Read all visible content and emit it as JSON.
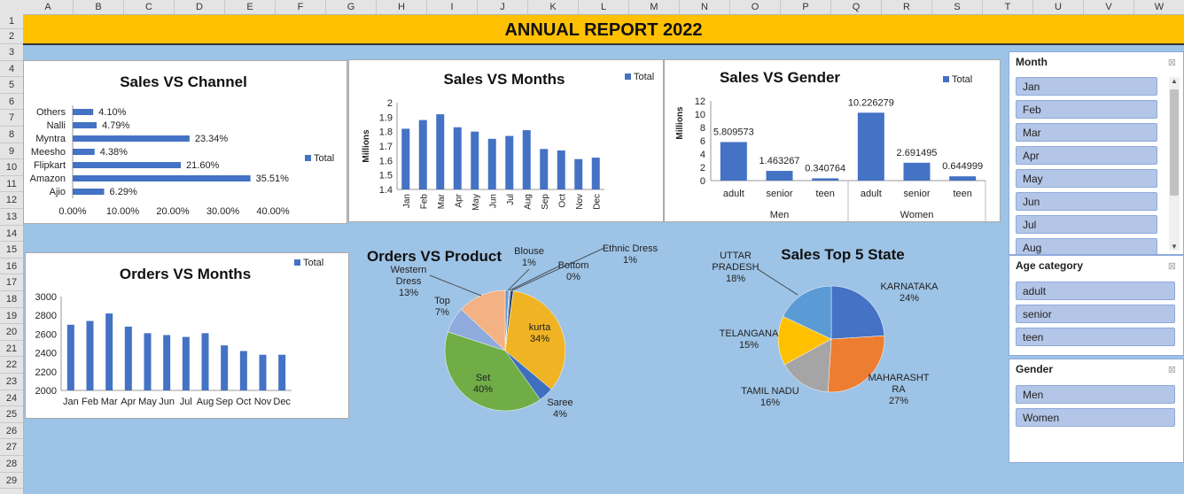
{
  "sheet": {
    "columns": [
      "A",
      "B",
      "C",
      "D",
      "E",
      "F",
      "G",
      "H",
      "I",
      "J",
      "K",
      "L",
      "M",
      "N",
      "O",
      "P",
      "Q",
      "R",
      "S",
      "T",
      "U",
      "V",
      "W"
    ],
    "rows": [
      "1",
      "2",
      "3",
      "4",
      "5",
      "6",
      "7",
      "8",
      "9",
      "10",
      "11",
      "12",
      "13",
      "14",
      "15",
      "16",
      "17",
      "18",
      "19",
      "20",
      "21",
      "22",
      "23",
      "24",
      "25",
      "26",
      "27",
      "28",
      "29"
    ]
  },
  "banner": {
    "title": "ANNUAL REPORT 2022"
  },
  "colors": {
    "bar": "#4472c4",
    "banner": "#ffc000",
    "background": "#9dc3e6",
    "slicer_item": "#b4c6e7"
  },
  "legend": {
    "total": "Total"
  },
  "sales_channel": {
    "chart_data": {
      "type": "bar",
      "orientation": "horizontal",
      "title": "Sales VS Channel",
      "categories": [
        "Others",
        "Nalli",
        "Myntra",
        "Meesho",
        "Flipkart",
        "Amazon",
        "Ajio"
      ],
      "series": [
        {
          "name": "Total",
          "values": [
            4.1,
            4.79,
            23.34,
            4.38,
            21.6,
            35.51,
            6.29
          ]
        }
      ],
      "value_labels": [
        "4.10%",
        "4.79%",
        "23.34%",
        "4.38%",
        "21.60%",
        "35.51%",
        "6.29%"
      ],
      "xlim": [
        0,
        40
      ],
      "ticks": [
        "0.00%",
        "10.00%",
        "20.00%",
        "30.00%",
        "40.00%"
      ],
      "legend": "right"
    }
  },
  "sales_months": {
    "chart_data": {
      "type": "bar",
      "title": "Sales VS Months",
      "ylabel": "Millions",
      "categories": [
        "Jan",
        "Feb",
        "Mar",
        "Apr",
        "May",
        "Jun",
        "Jul",
        "Aug",
        "Sep",
        "Oct",
        "Nov",
        "Dec"
      ],
      "series": [
        {
          "name": "Total",
          "values": [
            1.82,
            1.88,
            1.92,
            1.83,
            1.8,
            1.75,
            1.77,
            1.81,
            1.68,
            1.67,
            1.61,
            1.62
          ]
        }
      ],
      "ylim": [
        1.4,
        2
      ],
      "ticks": [
        "1.4",
        "1.5",
        "1.6",
        "1.7",
        "1.8",
        "1.9",
        "2"
      ],
      "legend": "top-right"
    }
  },
  "sales_gender": {
    "chart_data": {
      "type": "bar",
      "title": "Sales VS Gender",
      "ylabel": "Millions",
      "groups": [
        "Men",
        "Women"
      ],
      "categories": [
        "adult",
        "senior",
        "teen",
        "adult",
        "senior",
        "teen"
      ],
      "series": [
        {
          "name": "Total",
          "values": [
            5.809573,
            1.463267,
            0.340764,
            10.226279,
            2.691495,
            0.644999
          ]
        }
      ],
      "value_labels": [
        "5.809573",
        "1.463267",
        "0.340764",
        "10.226279",
        "2.691495",
        "0.644999"
      ],
      "ylim": [
        0,
        12
      ],
      "ticks": [
        "0",
        "2",
        "4",
        "6",
        "8",
        "10",
        "12"
      ],
      "legend": "top-right"
    }
  },
  "orders_months": {
    "chart_data": {
      "type": "bar",
      "title": "Orders VS Months",
      "categories": [
        "Jan",
        "Feb",
        "Mar",
        "Apr",
        "May",
        "Jun",
        "Jul",
        "Aug",
        "Sep",
        "Oct",
        "Nov",
        "Dec"
      ],
      "series": [
        {
          "name": "Total",
          "values": [
            2700,
            2740,
            2820,
            2680,
            2610,
            2590,
            2570,
            2610,
            2480,
            2420,
            2380,
            2380
          ]
        }
      ],
      "ylim": [
        2000,
        3000
      ],
      "ticks": [
        "2000",
        "2200",
        "2400",
        "2600",
        "2800",
        "3000"
      ],
      "legend": "top-right"
    }
  },
  "orders_product": {
    "chart_data": {
      "type": "pie",
      "title": "Orders VS Product",
      "slices": [
        {
          "label": "Blouse",
          "pct": "1%",
          "value": 1,
          "color": "#5b9bd5"
        },
        {
          "label": "Bottom",
          "pct": "0%",
          "value": 0.4,
          "color": "#a5a5a5"
        },
        {
          "label": "Ethnic Dress",
          "pct": "1%",
          "value": 0.8,
          "color": "#264478"
        },
        {
          "label": "kurta",
          "pct": "34%",
          "value": 34,
          "color": "#f0b323"
        },
        {
          "label": "Saree",
          "pct": "4%",
          "value": 4,
          "color": "#3f6fbf"
        },
        {
          "label": "Set",
          "pct": "40%",
          "value": 40,
          "color": "#70ad47"
        },
        {
          "label": "Top",
          "pct": "7%",
          "value": 7,
          "color": "#8faadc"
        },
        {
          "label": "Western Dress",
          "pct": "13%",
          "value": 13,
          "color": "#f4b183"
        }
      ]
    }
  },
  "top_states": {
    "chart_data": {
      "type": "pie",
      "title": "Sales Top 5 State",
      "slices": [
        {
          "label": "KARNATAKA",
          "pct": "24%",
          "value": 24,
          "color": "#4472c4"
        },
        {
          "label": "MAHARASHT RA",
          "pct": "27%",
          "value": 27,
          "color": "#ed7d31"
        },
        {
          "label": "TAMIL NADU",
          "pct": "16%",
          "value": 16,
          "color": "#a5a5a5"
        },
        {
          "label": "TELANGANA",
          "pct": "15%",
          "value": 15,
          "color": "#ffc000"
        },
        {
          "label": "UTTAR PRADESH",
          "pct": "18%",
          "value": 18,
          "color": "#5b9bd5"
        }
      ]
    }
  },
  "slicers": {
    "month": {
      "title": "Month",
      "items": [
        "Jan",
        "Feb",
        "Mar",
        "Apr",
        "May",
        "Jun",
        "Jul",
        "Aug"
      ]
    },
    "age": {
      "title": "Age category",
      "items": [
        "adult",
        "senior",
        "teen"
      ]
    },
    "gender": {
      "title": "Gender",
      "items": [
        "Men",
        "Women"
      ]
    },
    "filter_icon": "clear-filter-icon"
  }
}
